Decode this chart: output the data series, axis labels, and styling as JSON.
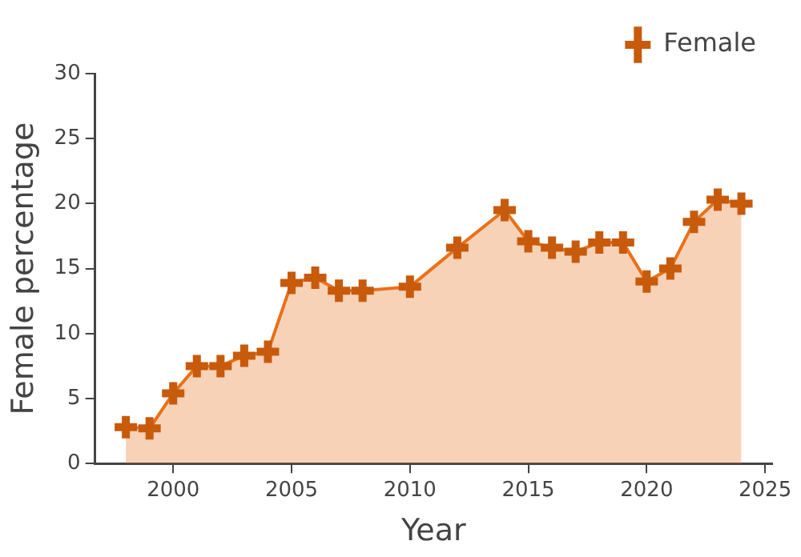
{
  "chart_data": {
    "type": "area",
    "xlabel": "Year",
    "ylabel": "Female percentage",
    "x": [
      1998,
      1999,
      2000,
      2001,
      2002,
      2003,
      2004,
      2005,
      2006,
      2007,
      2008,
      2010,
      2012,
      2014,
      2015,
      2016,
      2017,
      2018,
      2019,
      2020,
      2021,
      2022,
      2023,
      2024
    ],
    "series": [
      {
        "name": "Female",
        "color": "#e8711a",
        "values": [
          2.8,
          2.7,
          5.4,
          7.5,
          7.5,
          8.3,
          8.6,
          13.9,
          14.3,
          13.3,
          13.3,
          13.6,
          16.6,
          19.5,
          17.1,
          16.6,
          16.3,
          17,
          17,
          14,
          15,
          18.6,
          20.3,
          20
        ]
      }
    ],
    "xlim": [
      1996.7,
      2025.3
    ],
    "xticks": [
      2000,
      2005,
      2010,
      2015,
      2020,
      2025
    ],
    "ylim": [
      0,
      30
    ],
    "yticks": [
      0,
      5,
      10,
      15,
      20,
      25,
      30
    ],
    "grid": false,
    "legend": "top right",
    "marker": "cross",
    "line_style": "solid"
  }
}
